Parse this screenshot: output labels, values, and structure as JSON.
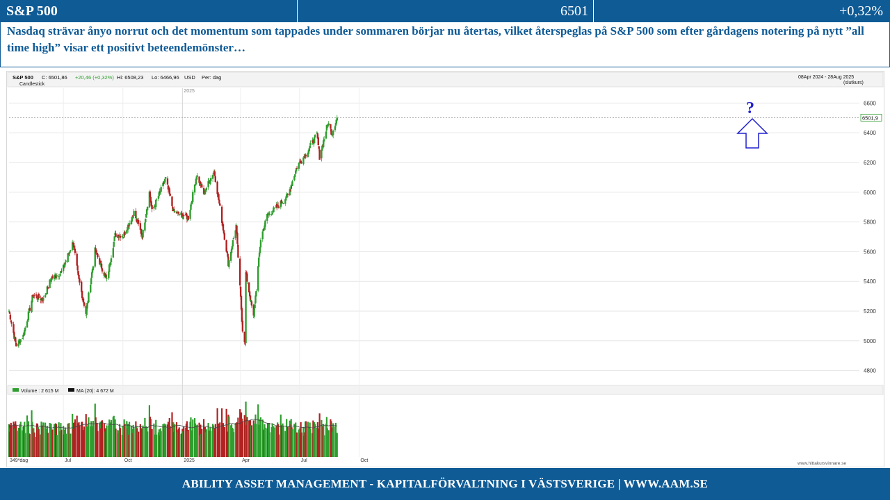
{
  "header": {
    "title": "S&P 500",
    "price": "6501",
    "change": "+0,32%"
  },
  "headline": "Nasdaq strävar ånyo norrut och det momentum som tappades under sommaren börjar nu återtas, vilket återspeglas på S&P 500 som efter gårdagens notering på nytt ”all time high” visar ett positivt beteendemönster…",
  "chart_header": {
    "symbol": "S&P 500",
    "close": "C: 6501,86",
    "change": "+20,46 (+0,32%)",
    "high": "Hi: 6508,23",
    "low": "Lo: 6466,96",
    "currency": "USD",
    "period": "Per: dag",
    "style": "Candlestick",
    "range": "08Apr 2024 - 28Aug 2025",
    "range_note": "(slutkurs)",
    "year_marker": "2025",
    "last_price_label": "6501,9",
    "annotation": "?"
  },
  "volume_header": {
    "volume": "Volume : 2 615 M",
    "ma": "MA (20): 4 672 M"
  },
  "footer": "ABILITY ASSET MANAGEMENT -  KAPITALFÖRVALTNING I VÄSTSVERIGE   |   WWW.AAM.SE",
  "watermark": "www.hittakursvinnare.se",
  "colors": {
    "brand": "#0f5b96",
    "up": "#2e9e2e",
    "down": "#b22222",
    "annotation": "#1f1fcf"
  },
  "chart_data": {
    "type": "candlestick",
    "title": "S&P 500",
    "ylim": [
      4700,
      6700
    ],
    "y_ticks": [
      4800,
      5000,
      5200,
      5400,
      5600,
      5800,
      6000,
      6200,
      6400,
      6600
    ],
    "x_tick_labels": [
      "349*dag",
      "Jul",
      "Oct",
      "2025",
      "Apr",
      "Jul",
      "Oct"
    ],
    "grid": true,
    "close_series": {
      "name": "S&P 500",
      "points": [
        [
          "2024-04-08",
          5202
        ],
        [
          "2024-04-19",
          4967
        ],
        [
          "2024-04-30",
          5035
        ],
        [
          "2024-05-15",
          5308
        ],
        [
          "2024-05-31",
          5277
        ],
        [
          "2024-06-12",
          5421
        ],
        [
          "2024-06-28",
          5460
        ],
        [
          "2024-07-16",
          5667
        ],
        [
          "2024-07-24",
          5427
        ],
        [
          "2024-08-05",
          5186
        ],
        [
          "2024-08-19",
          5608
        ],
        [
          "2024-09-06",
          5408
        ],
        [
          "2024-09-19",
          5713
        ],
        [
          "2024-10-02",
          5709
        ],
        [
          "2024-10-18",
          5864
        ],
        [
          "2024-10-31",
          5705
        ],
        [
          "2024-11-11",
          6001
        ],
        [
          "2024-11-15",
          5870
        ],
        [
          "2024-12-06",
          6090
        ],
        [
          "2024-12-18",
          5872
        ],
        [
          "2025-01-10",
          5827
        ],
        [
          "2025-01-23",
          6118
        ],
        [
          "2025-02-03",
          5994
        ],
        [
          "2025-02-19",
          6144
        ],
        [
          "2025-03-10",
          5615
        ],
        [
          "2025-03-13",
          5521
        ],
        [
          "2025-03-25",
          5776
        ],
        [
          "2025-04-04",
          5074
        ],
        [
          "2025-04-08",
          4982
        ],
        [
          "2025-04-09",
          5457
        ],
        [
          "2025-04-21",
          5158
        ],
        [
          "2025-05-02",
          5686
        ],
        [
          "2025-05-12",
          5844
        ],
        [
          "2025-05-30",
          5912
        ],
        [
          "2025-06-13",
          5977
        ],
        [
          "2025-06-27",
          6173
        ],
        [
          "2025-07-11",
          6260
        ],
        [
          "2025-07-28",
          6389
        ],
        [
          "2025-08-01",
          6238
        ],
        [
          "2025-08-14",
          6469
        ],
        [
          "2025-08-20",
          6395
        ],
        [
          "2025-08-28",
          6502
        ]
      ]
    },
    "volume": {
      "unit": "M",
      "last": 2615,
      "ma20": 4672
    }
  }
}
